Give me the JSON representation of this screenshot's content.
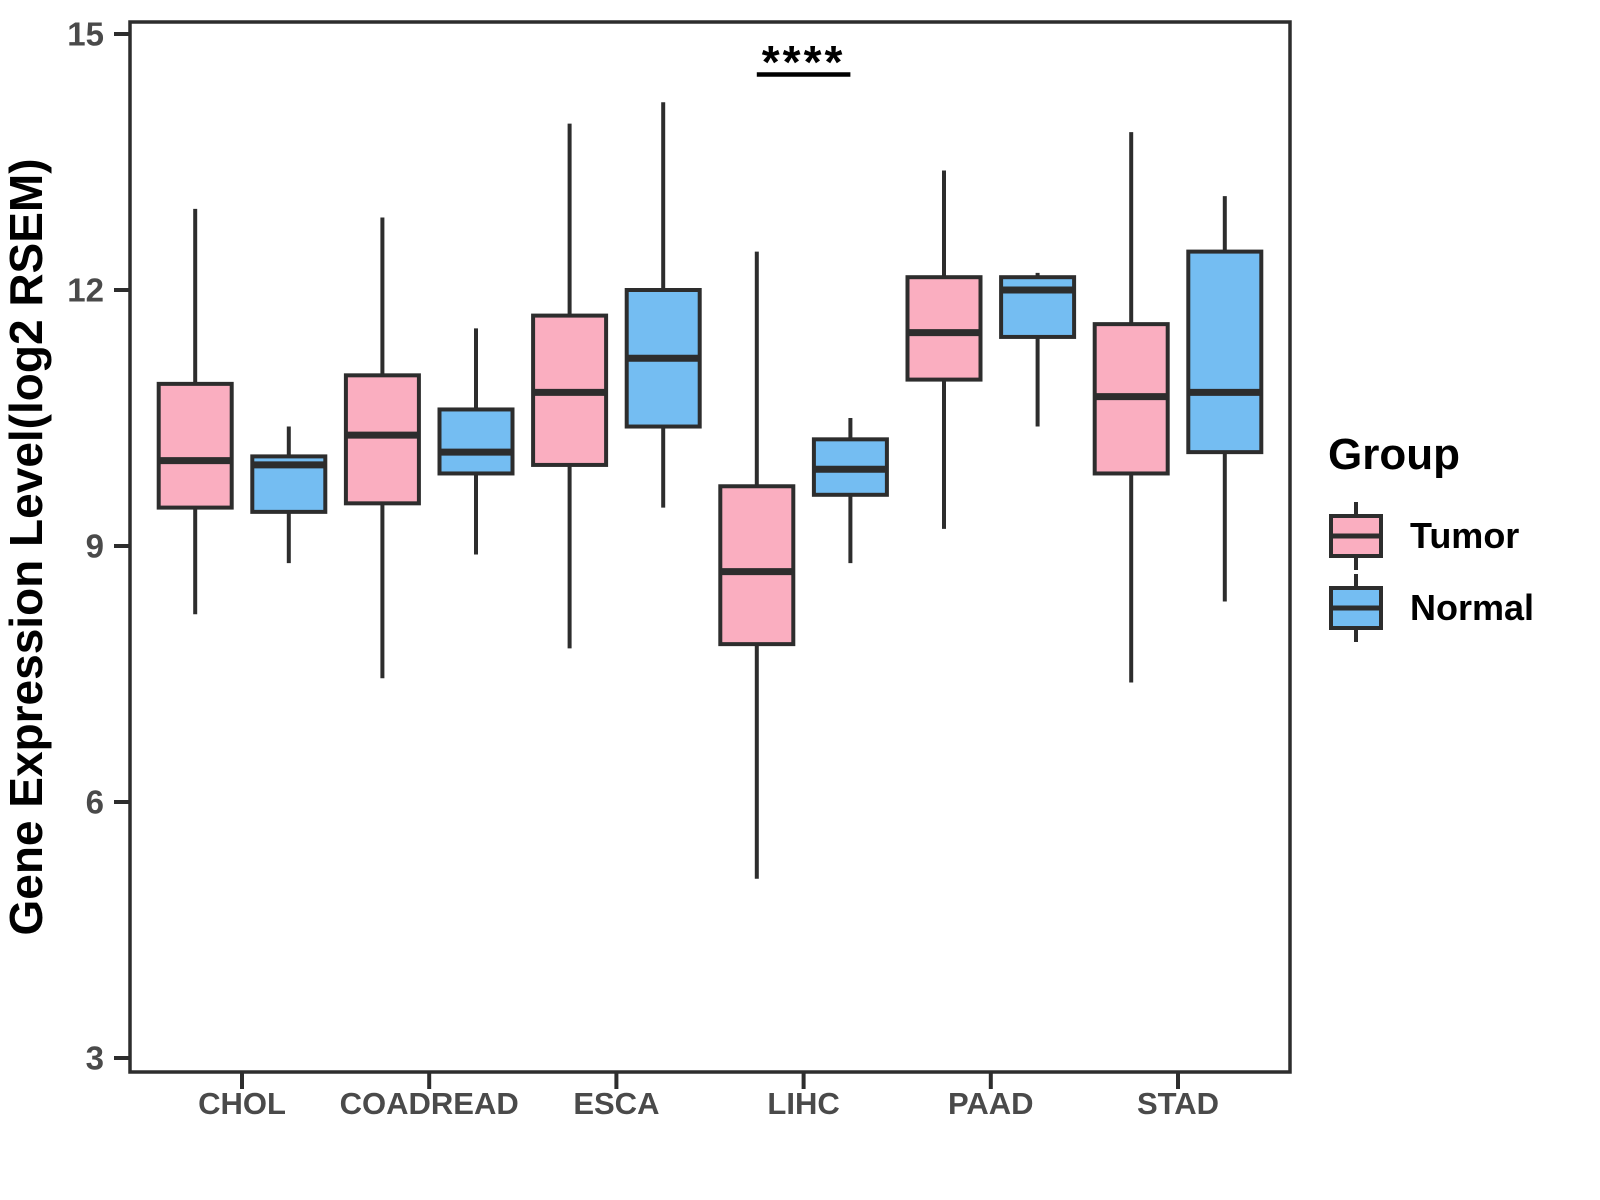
{
  "figure": {
    "background": "#FFFFFF"
  },
  "colors": {
    "box_line": "#2D2D2D",
    "tick_text": "#4A4A4A",
    "axis_title": "#000000",
    "tumor_fill": "#FAAEC0",
    "normal_fill": "#74BDF2"
  },
  "chart_data": {
    "type": "boxplot",
    "title": "",
    "xlabel": "",
    "ylabel": "Gene Expression Level(log2 RSEM)",
    "categories": [
      "CHOL",
      "COADREAD",
      "ESCA",
      "LIHC",
      "PAAD",
      "STAD"
    ],
    "y_ticks": [
      3,
      6,
      9,
      12,
      15
    ],
    "ylim": [
      2.8,
      15.2
    ],
    "grid": false,
    "legend_position": "right",
    "legend": {
      "title": "Group",
      "entries": [
        {
          "label": "Tumor",
          "color": "#FAAEC0"
        },
        {
          "label": "Normal",
          "color": "#74BDF2"
        }
      ]
    },
    "series": [
      {
        "name": "Tumor",
        "color": "#FAAEC0",
        "boxes": [
          {
            "category": "CHOL",
            "whisker_low": 8.2,
            "q1": 9.45,
            "median": 10.0,
            "q3": 10.9,
            "whisker_high": 12.95
          },
          {
            "category": "COADREAD",
            "whisker_low": 7.45,
            "q1": 9.5,
            "median": 10.3,
            "q3": 11.0,
            "whisker_high": 12.85
          },
          {
            "category": "ESCA",
            "whisker_low": 7.8,
            "q1": 9.95,
            "median": 10.8,
            "q3": 11.7,
            "whisker_high": 13.95
          },
          {
            "category": "LIHC",
            "whisker_low": 5.1,
            "q1": 7.85,
            "median": 8.7,
            "q3": 9.7,
            "whisker_high": 12.45
          },
          {
            "category": "PAAD",
            "whisker_low": 9.2,
            "q1": 10.95,
            "median": 11.5,
            "q3": 12.15,
            "whisker_high": 13.4
          },
          {
            "category": "STAD",
            "whisker_low": 7.4,
            "q1": 9.85,
            "median": 10.75,
            "q3": 11.6,
            "whisker_high": 13.85
          }
        ]
      },
      {
        "name": "Normal",
        "color": "#74BDF2",
        "boxes": [
          {
            "category": "CHOL",
            "whisker_low": 8.8,
            "q1": 9.4,
            "median": 9.95,
            "q3": 10.05,
            "whisker_high": 10.4
          },
          {
            "category": "COADREAD",
            "whisker_low": 8.9,
            "q1": 9.85,
            "median": 10.1,
            "q3": 10.6,
            "whisker_high": 11.55
          },
          {
            "category": "ESCA",
            "whisker_low": 9.45,
            "q1": 10.4,
            "median": 11.2,
            "q3": 12.0,
            "whisker_high": 14.2
          },
          {
            "category": "LIHC",
            "whisker_low": 8.8,
            "q1": 9.6,
            "median": 9.9,
            "q3": 10.25,
            "whisker_high": 10.5
          },
          {
            "category": "PAAD",
            "whisker_low": 10.4,
            "q1": 11.45,
            "median": 12.0,
            "q3": 12.15,
            "whisker_high": 12.2
          },
          {
            "category": "STAD",
            "whisker_low": 8.35,
            "q1": 10.1,
            "median": 10.8,
            "q3": 12.45,
            "whisker_high": 13.1
          }
        ]
      }
    ],
    "annotations": [
      {
        "type": "significance",
        "category": "LIHC",
        "label": "****"
      }
    ]
  }
}
